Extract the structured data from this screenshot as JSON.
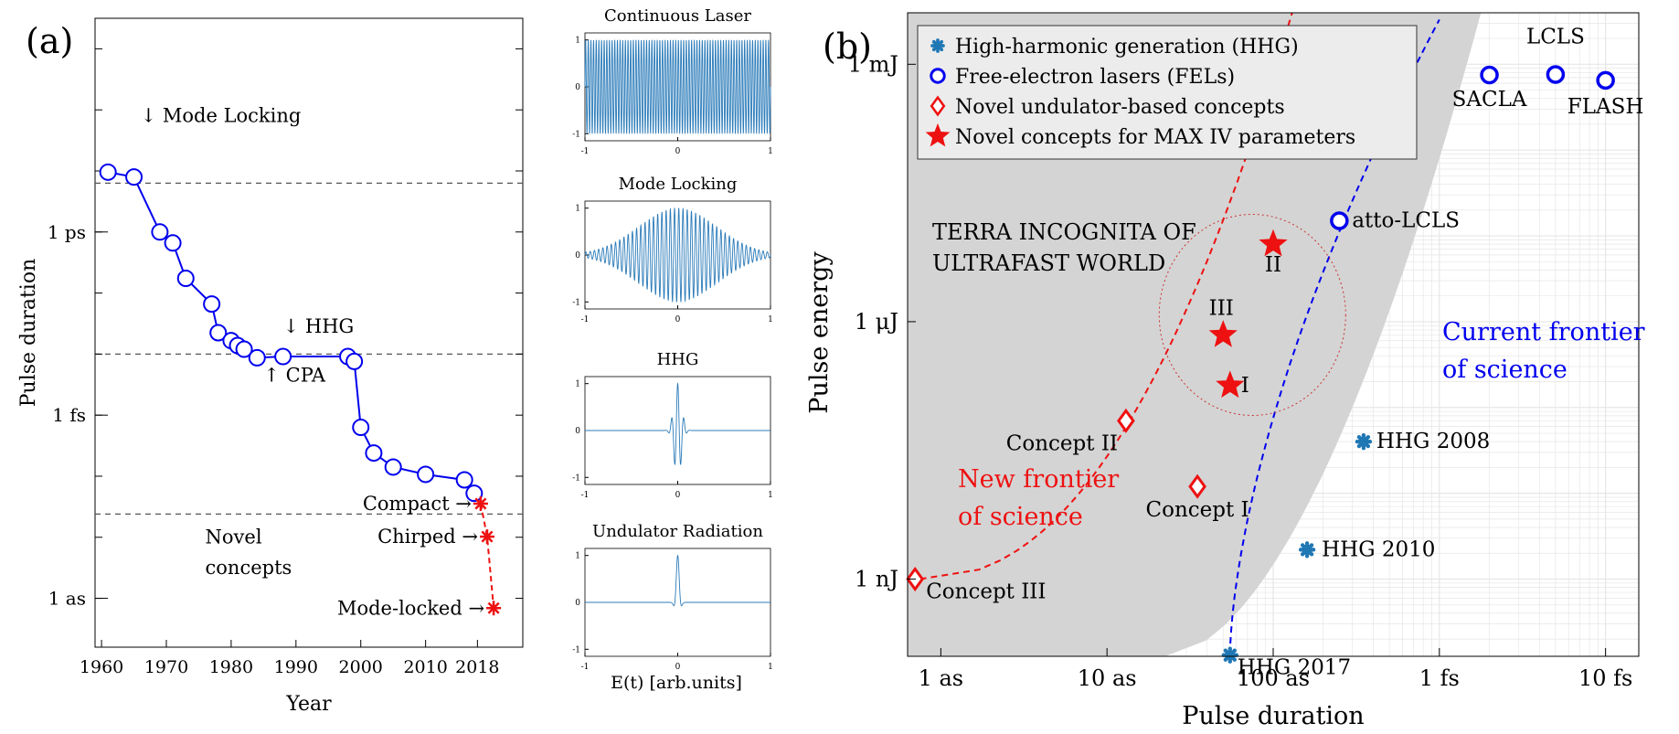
{
  "panel_labels": {
    "a": "(a)",
    "b": "(b)"
  },
  "colors": {
    "blue": "#0000ee",
    "red": "#ee1111",
    "hhg": "#1f77b4",
    "wave": "#2b7bb9",
    "terra": "#d4d4d4",
    "dashed_ref": "#555555"
  },
  "chart_data": [
    {
      "type": "line",
      "id": "history",
      "xlabel": "Year",
      "ylabel": "Pulse duration",
      "xlim": [
        1959,
        2025
      ],
      "x_ticks": [
        1960,
        1970,
        1980,
        1990,
        2000,
        2010,
        2018
      ],
      "y_ticks": [
        {
          "label": "1 ps",
          "log10_s": -12
        },
        {
          "label": "1 fs",
          "log10_s": -15
        },
        {
          "label": "1 as",
          "log10_s": -18
        }
      ],
      "ylim_log10_s": [
        -18.8,
        -8.5
      ],
      "y_scale": "log",
      "series": [
        {
          "style": "blue-circles",
          "x": [
            1961,
            1965,
            1969,
            1971,
            1973,
            1977,
            1978,
            1980,
            1981,
            1982,
            1984,
            1988,
            1998,
            1999,
            2000,
            2002,
            2005,
            2010,
            2016,
            2017.5
          ],
          "y_log10_s": [
            -11.02,
            -11.1,
            -12.0,
            -12.18,
            -12.76,
            -13.18,
            -13.65,
            -13.78,
            -13.86,
            -13.92,
            -14.06,
            -14.04,
            -14.04,
            -14.12,
            -15.2,
            -15.62,
            -15.85,
            -15.97,
            -16.06,
            -16.28
          ]
        },
        {
          "style": "red-stars-dashed",
          "x": [
            2018.5,
            2019.5,
            2020.5
          ],
          "y_log10_s": [
            -16.45,
            -16.99,
            -18.16
          ]
        }
      ],
      "hlines_log10_s": [
        -11.2,
        -14.0,
        -16.62
      ],
      "annotations": [
        {
          "text": "↓ Mode Locking",
          "x": 1966,
          "y_log10_s": -10.2
        },
        {
          "text": "↓ HHG",
          "x": 1988,
          "y_log10_s": -13.65
        },
        {
          "text": "↑ CPA",
          "x": 1985,
          "y_log10_s": -14.45
        },
        {
          "text": "Novel",
          "x": 1976,
          "y_log10_s": -17.1
        },
        {
          "text": "concepts",
          "x": 1976,
          "y_log10_s": -17.6
        }
      ],
      "labels": [
        {
          "text": "Compact →",
          "x": 2018.5,
          "y_log10_s": -16.45
        },
        {
          "text": "Chirped →",
          "x": 2019.5,
          "y_log10_s": -16.99
        },
        {
          "text": "Mode-locked →",
          "x": 2020.5,
          "y_log10_s": -18.16
        }
      ]
    },
    {
      "type": "line",
      "id": "waveforms",
      "xlabel": "E(t) [arb.units]",
      "x_ticks": [
        -1,
        0,
        1
      ],
      "y_ticks": [
        -1,
        0,
        1
      ],
      "panels": [
        {
          "title": "Continuous Laser",
          "kind": "cw"
        },
        {
          "title": "Mode Locking",
          "kind": "modelock"
        },
        {
          "title": "HHG",
          "kind": "hhg"
        },
        {
          "title": "Undulator Radiation",
          "kind": "undulator"
        }
      ]
    },
    {
      "type": "scatter",
      "id": "frontier",
      "xlabel": "Pulse duration",
      "ylabel": "Pulse energy",
      "x_scale": "log",
      "y_scale": "log",
      "xlim_log10_as": [
        -0.2,
        4.2
      ],
      "ylim_log10_nJ": [
        -0.9,
        6.6
      ],
      "x_ticks": [
        {
          "label": "1 as",
          "log10_as": 0
        },
        {
          "label": "10 as",
          "log10_as": 1
        },
        {
          "label": "100 as",
          "log10_as": 2
        },
        {
          "label": "1 fs",
          "log10_as": 3
        },
        {
          "label": "10 fs",
          "log10_as": 4
        }
      ],
      "y_ticks": [
        {
          "label": "1 nJ",
          "log10_nJ": 0
        },
        {
          "label": "1 μJ",
          "log10_nJ": 3
        },
        {
          "label": "1 mJ",
          "log10_nJ": 6
        }
      ],
      "legend": {
        "placement": "top-left",
        "entries": [
          {
            "marker": "hhg",
            "text": "High-harmonic generation (HHG)"
          },
          {
            "marker": "fel",
            "text": "Free-electron lasers (FELs)"
          },
          {
            "marker": "diamond",
            "text": "Novel undulator-based concepts"
          },
          {
            "marker": "star",
            "text": "Novel concepts for MAX IV parameters"
          }
        ]
      },
      "series": [
        {
          "marker": "fel",
          "points": [
            {
              "label": "SACLA",
              "x_as": 2000,
              "y_nJ": 750000
            },
            {
              "label": "LCLS",
              "x_as": 5000,
              "y_nJ": 760000
            },
            {
              "label": "FLASH",
              "x_as": 10000,
              "y_nJ": 650000
            },
            {
              "label": "atto-LCLS",
              "x_as": 250,
              "y_nJ": 15000
            }
          ]
        },
        {
          "marker": "hhg",
          "points": [
            {
              "label": "HHG 2008",
              "x_as": 350,
              "y_nJ": 40
            },
            {
              "label": "HHG 2010",
              "x_as": 160,
              "y_nJ": 2.2
            },
            {
              "label": "HHG 2017",
              "x_as": 55,
              "y_nJ": 0.13
            }
          ]
        },
        {
          "marker": "diamond",
          "points": [
            {
              "label": "Concept II",
              "x_as": 13,
              "y_nJ": 70
            },
            {
              "label": "Concept I",
              "x_as": 35,
              "y_nJ": 12
            },
            {
              "label": "Concept III",
              "x_as": 0.7,
              "y_nJ": 1
            }
          ]
        },
        {
          "marker": "star",
          "points": [
            {
              "label": "II",
              "x_as": 100,
              "y_nJ": 8000
            },
            {
              "label": "III",
              "x_as": 50,
              "y_nJ": 700
            },
            {
              "label": "I",
              "x_as": 55,
              "y_nJ": 180
            }
          ]
        }
      ],
      "region_text": [
        "TERRA INCOGNITA OF",
        "ULTRAFAST WORLD"
      ],
      "frontier_labels": {
        "current": [
          "Current frontier",
          "of science"
        ],
        "new": [
          "New frontier",
          "of science"
        ]
      }
    }
  ]
}
